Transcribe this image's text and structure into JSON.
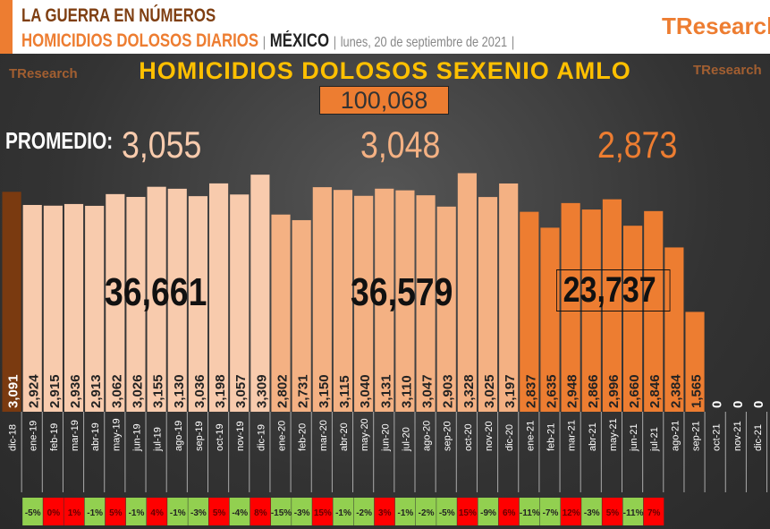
{
  "header": {
    "title": "LA GUERRA EN NÚMEROS",
    "subtitle": "HOMICIDIOS DOLOSOS DIARIOS",
    "country": "MÉXICO",
    "date": "lunes, 20 de septiembre de 2021",
    "sep": "|",
    "logo": "TResearch"
  },
  "chart_data": {
    "type": "bar",
    "title": "HOMICIDIOS DOLOSOS SEXENIO AMLO",
    "total": "100,068",
    "average_label": "PROMEDIO:",
    "averages": [
      "3,055",
      "3,048",
      "2,873"
    ],
    "year_totals": [
      "36,661",
      "36,579",
      "23,737"
    ],
    "categories": [
      "dic-18",
      "ene-19",
      "feb-19",
      "mar-19",
      "abr-19",
      "may-19",
      "jun-19",
      "jul-19",
      "ago-19",
      "sep-19",
      "oct-19",
      "nov-19",
      "dic-19",
      "ene-20",
      "feb-20",
      "mar-20",
      "abr-20",
      "may-20",
      "jun-20",
      "jul-20",
      "ago-20",
      "sep-20",
      "oct-20",
      "nov-20",
      "dic-20",
      "ene-21",
      "feb-21",
      "mar-21",
      "abr-21",
      "may-21",
      "jun-21",
      "jul-21",
      "ago-21",
      "sep-21",
      "oct-21",
      "nov-21",
      "dic-21"
    ],
    "values": [
      3091,
      2924,
      2915,
      2936,
      2913,
      3062,
      3026,
      3155,
      3130,
      3036,
      3198,
      3057,
      3309,
      2802,
      2731,
      3150,
      3115,
      3040,
      3131,
      3110,
      3047,
      2903,
      3328,
      3025,
      3197,
      2837,
      2635,
      2948,
      2866,
      2996,
      2660,
      2846,
      2384,
      1565,
      0,
      0,
      0
    ],
    "labels": [
      "3,091",
      "2,924",
      "2,915",
      "2,936",
      "2,913",
      "3,062",
      "3,026",
      "3,155",
      "3,130",
      "3,036",
      "3,198",
      "3,057",
      "3,309",
      "2,802",
      "2,731",
      "3,150",
      "3,115",
      "3,040",
      "3,131",
      "3,110",
      "3,047",
      "2,903",
      "3,328",
      "3,025",
      "3,197",
      "2,837",
      "2,635",
      "2,948",
      "2,866",
      "2,996",
      "2,660",
      "2,846",
      "2,384",
      "1,565",
      "0",
      "0",
      "0"
    ],
    "pct_change": [
      "-5%",
      "0%",
      "1%",
      "-1%",
      "5%",
      "-1%",
      "4%",
      "-1%",
      "-3%",
      "5%",
      "-4%",
      "8%",
      "-15%",
      "-3%",
      "15%",
      "-1%",
      "-2%",
      "3%",
      "-1%",
      "-2%",
      "-5%",
      "15%",
      "-9%",
      "6%",
      "-11%",
      "-7%",
      "12%",
      "-3%",
      "5%",
      "-11%",
      "7%"
    ],
    "colors": {
      "2018": "#7a3a10",
      "2019": "#f8cbad",
      "2020": "#f4b183",
      "2021": "#ed7d31",
      "up": "#ff0000",
      "down": "#92d050"
    }
  }
}
